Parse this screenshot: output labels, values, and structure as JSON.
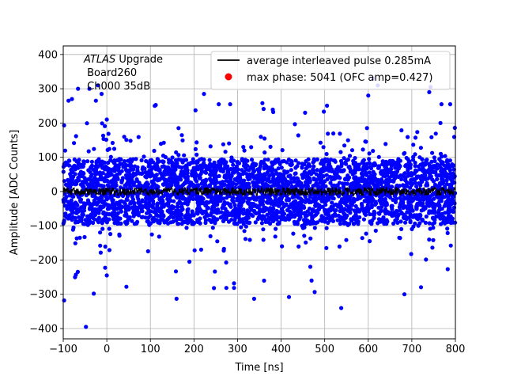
{
  "chart_data": {
    "type": "scatter",
    "xlabel": "Time [ns]",
    "ylabel": "Amplitude [ADC Counts]",
    "xlim": [
      -100,
      800
    ],
    "ylim": [
      -430,
      425
    ],
    "xticks": [
      -100,
      0,
      100,
      200,
      300,
      400,
      500,
      600,
      700,
      800
    ],
    "yticks": [
      -400,
      -300,
      -200,
      -100,
      0,
      100,
      200,
      300,
      400
    ],
    "grid": true,
    "legend_position": "top-right",
    "annotation": {
      "experiment": "ATLAS",
      "line1_rest": " Upgrade",
      "line2": " Board260",
      "line3": " Ch000 35dB"
    },
    "series": [
      {
        "name": "average interleaved pulse 0.285mA",
        "kind": "line",
        "color": "#000000",
        "band_center": 0,
        "band_halfwidth": 12
      },
      {
        "name": "max phase: 5041 (OFC amp=0.427)",
        "kind": "marker",
        "color": "#ff0000",
        "x": [],
        "y": []
      },
      {
        "kind": "scatter",
        "color": "#0000ff",
        "description_core_band": [
          -100,
          100
        ],
        "outliers": [
          {
            "x": -98,
            "y": 193
          },
          {
            "x": -88,
            "y": 265
          },
          {
            "x": -80,
            "y": 270
          },
          {
            "x": -66,
            "y": 300
          },
          {
            "x": -40,
            "y": 300
          },
          {
            "x": -25,
            "y": 265
          },
          {
            "x": -20,
            "y": 310
          },
          {
            "x": -12,
            "y": 285
          },
          {
            "x": -98,
            "y": -318
          },
          {
            "x": -73,
            "y": -250
          },
          {
            "x": -48,
            "y": -395
          },
          {
            "x": -30,
            "y": -298
          },
          {
            "x": 0,
            "y": -245
          },
          {
            "x": 45,
            "y": -278
          },
          {
            "x": 110,
            "y": 250
          },
          {
            "x": 223,
            "y": 285
          },
          {
            "x": 257,
            "y": 255
          },
          {
            "x": 283,
            "y": 255
          },
          {
            "x": 357,
            "y": 258
          },
          {
            "x": 382,
            "y": 232
          },
          {
            "x": 160,
            "y": -313
          },
          {
            "x": 292,
            "y": -268
          },
          {
            "x": 338,
            "y": -313
          },
          {
            "x": 418,
            "y": -308
          },
          {
            "x": 538,
            "y": -340
          },
          {
            "x": 683,
            "y": -300
          },
          {
            "x": 622,
            "y": 310
          },
          {
            "x": 740,
            "y": 290
          },
          {
            "x": 743,
            "y": 305
          },
          {
            "x": 768,
            "y": 255
          },
          {
            "x": 788,
            "y": 255
          },
          {
            "x": 0,
            "y": 210
          },
          {
            "x": 600,
            "y": 280
          },
          {
            "x": 455,
            "y": 230
          },
          {
            "x": 470,
            "y": -260
          }
        ]
      }
    ]
  }
}
